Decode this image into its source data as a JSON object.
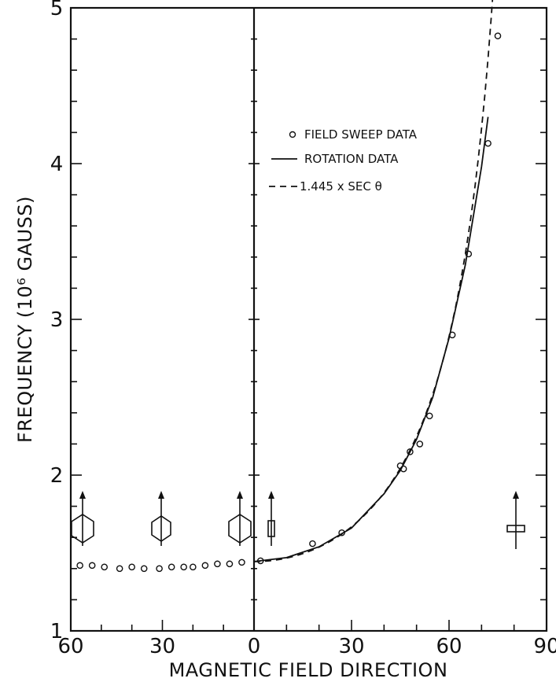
{
  "chart_data": {
    "type": "scatter",
    "title": "",
    "xlabel": "MAGNETIC FIELD DIRECTION",
    "ylabel": "FREQUENCY (10⁶ GAUSS)",
    "ylim": [
      1,
      5
    ],
    "xlim_left_panel": [
      60,
      0
    ],
    "xlim_right_panel": [
      0,
      90
    ],
    "y_ticks": [
      "1",
      "2",
      "3",
      "4",
      "5"
    ],
    "x_ticks_left": [
      "60",
      "30"
    ],
    "x_ticks_right": [
      "0",
      "30",
      "60",
      "90"
    ],
    "legend": {
      "placement": "top-left of right panel",
      "entries": [
        "FIELD SWEEP DATA",
        "ROTATION DATA",
        "1.445 x SEC θ"
      ]
    },
    "series": [
      {
        "name": "FIELD SWEEP DATA",
        "kind": "points",
        "panel": "right",
        "x": [
          2,
          18,
          27,
          45,
          46,
          48,
          51,
          54,
          61,
          66,
          72,
          75
        ],
        "y": [
          1.45,
          1.56,
          1.63,
          2.06,
          2.04,
          2.15,
          2.2,
          2.38,
          2.9,
          3.42,
          4.13,
          4.82
        ]
      },
      {
        "name": "FIELD SWEEP DATA",
        "kind": "points",
        "panel": "left",
        "x": [
          57,
          53,
          49,
          44,
          40,
          36,
          31,
          27,
          23,
          20,
          16,
          12,
          8,
          4
        ],
        "y": [
          1.42,
          1.42,
          1.41,
          1.4,
          1.41,
          1.4,
          1.4,
          1.41,
          1.41,
          1.41,
          1.42,
          1.43,
          1.43,
          1.44
        ]
      },
      {
        "name": "ROTATION DATA",
        "kind": "line",
        "panel": "right",
        "x": [
          0,
          10,
          20,
          30,
          40,
          45,
          50,
          55,
          60,
          65,
          70,
          72
        ],
        "y": [
          1.445,
          1.47,
          1.54,
          1.66,
          1.88,
          2.03,
          2.23,
          2.5,
          2.88,
          3.35,
          3.98,
          4.3
        ]
      },
      {
        "name": "1.445 x SEC θ",
        "kind": "dashed",
        "panel": "right",
        "formula": "1.445 / cos(x)",
        "x_range": [
          0,
          75
        ]
      }
    ]
  },
  "colors": {
    "ink": "#111111",
    "background": "#ffffff"
  },
  "icons": [
    "arrow-up-icon",
    "hexagon-crystal-icon",
    "rectangle-crystal-icon"
  ]
}
